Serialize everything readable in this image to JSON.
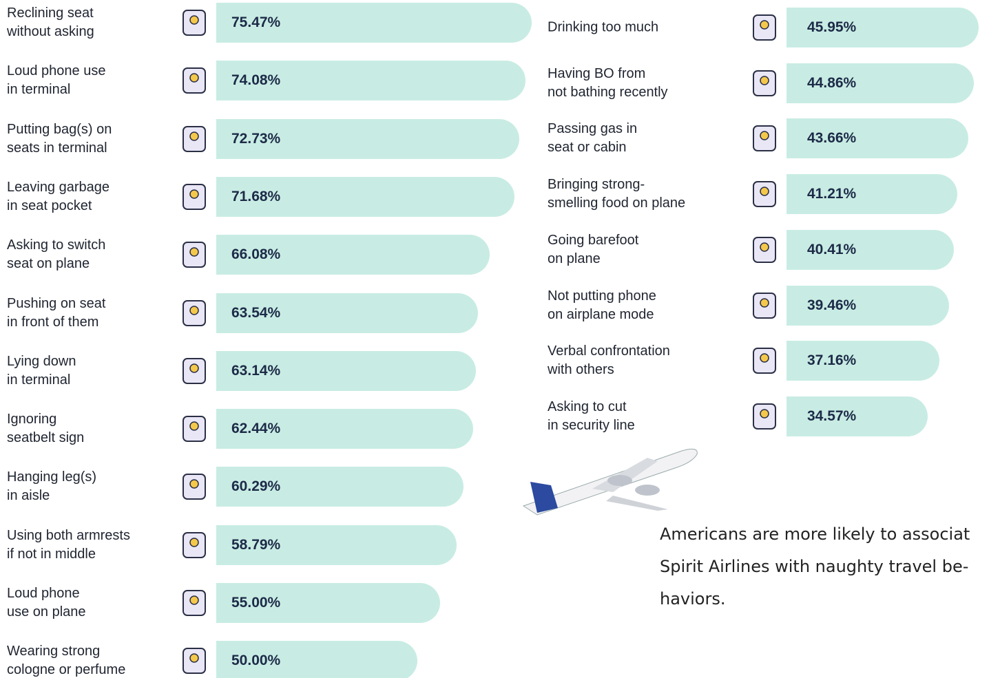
{
  "chart_data": [
    {
      "type": "bar",
      "horizontal": true,
      "color": "#c8ece3",
      "categories": [
        "Reclining seat\nwithout asking",
        "Loud phone use\nin terminal",
        "Putting bag(s) on\nseats in terminal",
        "Leaving garbage\nin seat pocket",
        "Asking to switch\nseat on plane",
        "Pushing on seat\nin front of them",
        "Lying down\nin terminal",
        "Ignoring\nseatbelt sign",
        "Hanging leg(s)\nin aisle",
        "Using both armrests\nif not in middle",
        "Loud phone\nuse on plane",
        "Wearing strong\ncologne or perfume"
      ],
      "values": [
        75.47,
        74.08,
        72.73,
        71.68,
        66.08,
        63.54,
        63.14,
        62.44,
        60.29,
        58.79,
        55.0,
        50.0
      ],
      "value_labels": [
        "75.47%",
        "74.08%",
        "72.73%",
        "71.68%",
        "66.08%",
        "63.54%",
        "63.14%",
        "62.44%",
        "60.29%",
        "58.79%",
        "55.00%",
        "50.00%"
      ]
    },
    {
      "type": "bar",
      "horizontal": true,
      "color": "#c8ece3",
      "categories": [
        "Drinking too much",
        "Having BO from\nnot bathing recently",
        "Passing gas in\nseat or cabin",
        "Bringing strong-\nsmelling food on plane",
        "Going barefoot\non plane",
        "Not putting phone\non airplane mode",
        "Verbal confrontation\nwith others",
        "Asking to cut\nin security line"
      ],
      "values": [
        45.95,
        44.86,
        43.66,
        41.21,
        40.41,
        39.46,
        37.16,
        34.57
      ],
      "value_labels": [
        "45.95%",
        "44.86%",
        "43.66%",
        "41.21%",
        "40.41%",
        "39.46%",
        "37.16%",
        "34.57%"
      ]
    }
  ],
  "note": [
    "Americans are more likely to associat",
    "Spirit Airlines with naughty travel be-",
    "haviors."
  ]
}
